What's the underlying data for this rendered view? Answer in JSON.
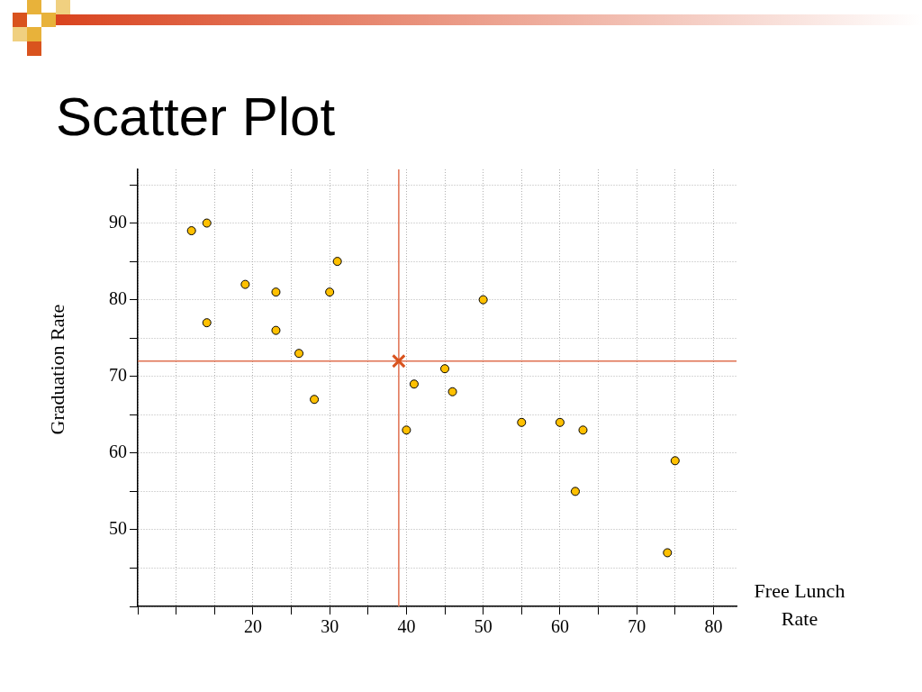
{
  "chart_data": {
    "type": "scatter",
    "title": "Scatter Plot",
    "xlabel": "Free Lunch Rate",
    "ylabel": "Graduation Rate",
    "series": [
      {
        "color": "#ffc000",
        "x": [
          12,
          14,
          19,
          23,
          14,
          23,
          26,
          28,
          30,
          31,
          40,
          41,
          45,
          46,
          50,
          55,
          60,
          63,
          62,
          74,
          75
        ],
        "values": [
          89,
          90,
          82,
          81,
          77,
          76,
          73,
          67,
          81,
          85,
          63,
          69,
          71,
          68,
          80,
          64,
          64,
          63,
          55,
          47,
          59
        ],
        "marker": "circle"
      },
      {
        "color": "#d9531e",
        "x": [
          39
        ],
        "values": [
          72
        ],
        "marker": "cross"
      }
    ],
    "ref_lines": [
      {
        "axis": "x",
        "value": 39,
        "color": "#e07050"
      },
      {
        "axis": "y",
        "value": 72,
        "color": "#e07050"
      }
    ],
    "xlim": [
      5,
      83
    ],
    "ylim": [
      40,
      97
    ],
    "xticks": [
      {
        "value": 5,
        "label": null
      },
      {
        "value": 10,
        "label": null
      },
      {
        "value": 15,
        "label": null
      },
      20,
      {
        "value": 25,
        "label": null
      },
      30,
      {
        "value": 35,
        "label": null
      },
      40,
      {
        "value": 45,
        "label": null
      },
      50,
      {
        "value": 55,
        "label": null
      },
      60,
      {
        "value": 65,
        "label": null
      },
      70,
      {
        "value": 75,
        "label": null
      },
      80
    ],
    "yticks": [
      {
        "value": 40,
        "label": null
      },
      {
        "value": 45,
        "label": null
      },
      50,
      {
        "value": 55,
        "label": null
      },
      60,
      {
        "value": 65,
        "label": null
      },
      70,
      {
        "value": 75,
        "label": null
      },
      80,
      {
        "value": 85,
        "label": null
      },
      90,
      {
        "value": 95,
        "label": null
      }
    ],
    "grid": true,
    "legend": false
  }
}
